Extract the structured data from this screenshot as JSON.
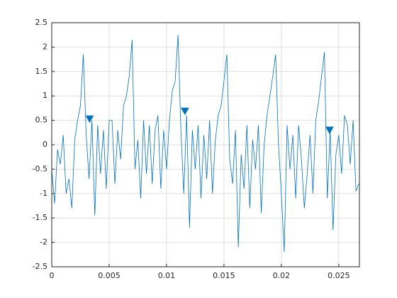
{
  "chart_data": {
    "type": "line",
    "x": [
      0,
      0.00025,
      0.0005,
      0.00075,
      0.001,
      0.00125,
      0.0015,
      0.00175,
      0.002,
      0.00225,
      0.0025,
      0.00275,
      0.003,
      0.00325,
      0.0035,
      0.00375,
      0.004,
      0.00425,
      0.0045,
      0.00475,
      0.005,
      0.00525,
      0.0055,
      0.00575,
      0.006,
      0.00625,
      0.0065,
      0.00675,
      0.007,
      0.00725,
      0.0075,
      0.00775,
      0.008,
      0.00825,
      0.0085,
      0.00875,
      0.009,
      0.00925,
      0.0095,
      0.00975,
      0.01,
      0.01025,
      0.0105,
      0.01075,
      0.011,
      0.01125,
      0.0115,
      0.01175,
      0.012,
      0.01225,
      0.0125,
      0.01275,
      0.013,
      0.01325,
      0.0135,
      0.01375,
      0.014,
      0.01425,
      0.0145,
      0.01475,
      0.015,
      0.01525,
      0.0155,
      0.01575,
      0.016,
      0.01625,
      0.0165,
      0.01675,
      0.017,
      0.01725,
      0.0175,
      0.01775,
      0.018,
      0.01825,
      0.0185,
      0.01875,
      0.019,
      0.01925,
      0.0195,
      0.01975,
      0.02,
      0.02025,
      0.0205,
      0.02075,
      0.021,
      0.02125,
      0.0215,
      0.02175,
      0.022,
      0.02225,
      0.0225,
      0.02275,
      0.023,
      0.02325,
      0.0235,
      0.02375,
      0.024,
      0.02425,
      0.0245,
      0.02475,
      0.025,
      0.02525,
      0.0255,
      0.02575,
      0.026,
      0.02625,
      0.0265,
      0.02675
    ],
    "values": [
      -0.5,
      -1.2,
      -0.1,
      -0.4,
      0.2,
      -1.0,
      -0.7,
      -1.3,
      0.1,
      0.5,
      0.8,
      1.85,
      0.2,
      -0.7,
      0.5,
      -1.45,
      0.4,
      -0.6,
      0.3,
      -0.9,
      0.5,
      0.5,
      -0.8,
      0.3,
      -0.3,
      0.8,
      1.0,
      1.4,
      2.15,
      -0.5,
      0.1,
      -1.1,
      0.5,
      -0.6,
      0.4,
      -0.8,
      0.3,
      0.6,
      -0.9,
      0.3,
      -0.5,
      0.5,
      1.1,
      1.3,
      2.25,
      0.3,
      -1.0,
      0.6,
      -1.7,
      0.3,
      -0.5,
      0.4,
      -1.1,
      0.2,
      -0.7,
      0.5,
      -1.0,
      0.1,
      0.6,
      0.8,
      1.3,
      1.85,
      -0.3,
      -0.8,
      0.3,
      -2.1,
      -0.2,
      -0.9,
      0.4,
      -1.3,
      0.1,
      -0.5,
      0.4,
      -1.4,
      0.0,
      0.6,
      1.0,
      1.4,
      1.85,
      0.0,
      -1.0,
      -2.2,
      0.4,
      -0.5,
      0.2,
      -1.1,
      0.4,
      -0.3,
      -1.3,
      -0.6,
      0.2,
      -1.0,
      0.5,
      0.9,
      1.4,
      1.9,
      -1.1,
      0.3,
      -1.75,
      -0.2,
      0.2,
      -0.6,
      0.6,
      0.4,
      -0.4,
      0.5,
      -0.95,
      -0.8
    ],
    "color": "#0072bd",
    "markers": {
      "x": [
        0.0033,
        0.0116,
        0.0242
      ],
      "values": [
        0.52,
        0.68,
        0.29
      ],
      "color": "#0072bd"
    },
    "xlim": [
      0,
      0.0268
    ],
    "xticks": [
      0,
      0.005,
      0.01,
      0.015,
      0.02,
      0.025
    ],
    "ylim": [
      -2.5,
      2.5
    ],
    "yticks": [
      -2.5,
      -2,
      -1.5,
      -1,
      -0.5,
      0,
      0.5,
      1,
      1.5,
      2,
      2.5
    ],
    "grid": true
  }
}
